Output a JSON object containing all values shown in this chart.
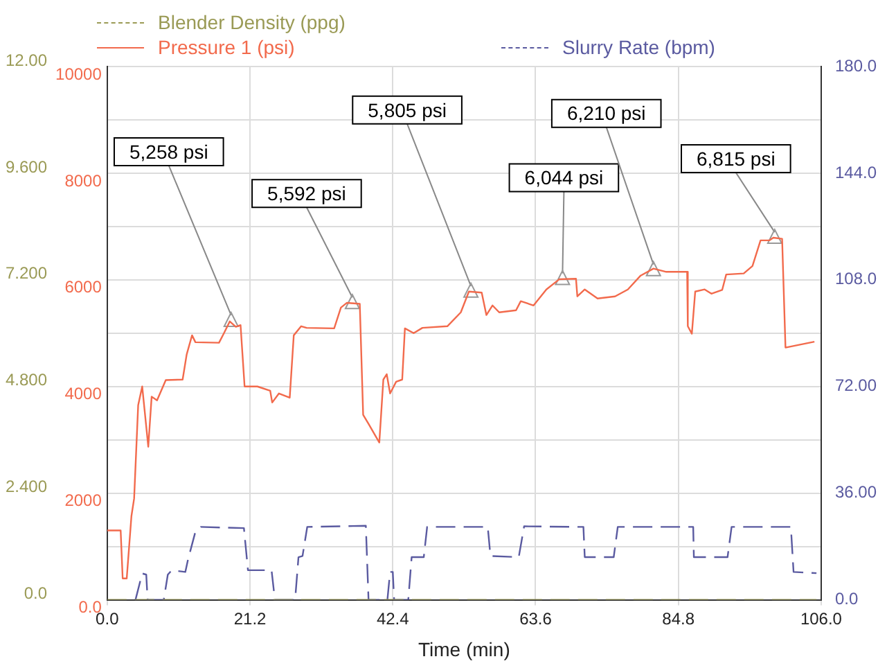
{
  "chart_data": {
    "type": "line",
    "xlabel": "Time (min)",
    "legend": "top",
    "grid": true,
    "marker": "none",
    "xlim": [
      0,
      106
    ],
    "xticks": [
      {
        "value": 0,
        "label": "0.0"
      },
      21.2,
      42.4,
      63.6,
      84.8,
      {
        "value": 106,
        "label": "106.0"
      }
    ],
    "ylim": [
      0,
      10000
    ],
    "yticks": [
      {
        "value": 0,
        "label": "0.0"
      },
      {
        "value": 1000,
        "label": null
      },
      2000,
      {
        "value": 3000,
        "label": null
      },
      4000,
      {
        "value": 5000,
        "label": null
      },
      6000,
      {
        "value": 7000,
        "label": null
      },
      8000,
      {
        "value": 9000,
        "label": null
      },
      10000
    ],
    "y2lim": [
      0,
      180
    ],
    "y2ticks": [
      {
        "value": 0,
        "label": "0.0"
      },
      {
        "value": 36,
        "label": "36.00"
      },
      {
        "value": 72,
        "label": "72.00"
      },
      {
        "value": 108,
        "label": "108.0"
      },
      {
        "value": 144,
        "label": "144.0"
      },
      {
        "value": 180,
        "label": "180.0"
      }
    ],
    "y3lim": [
      0,
      12
    ],
    "y3ticks": [
      {
        "value": 0,
        "label": "0.0"
      },
      {
        "value": 2.4,
        "label": "2.400"
      },
      {
        "value": 4.8,
        "label": "4.800"
      },
      {
        "value": 7.2,
        "label": "7.200"
      },
      {
        "value": 9.6,
        "label": "9.600"
      },
      {
        "value": 12,
        "label": "12.00"
      }
    ],
    "series": [
      {
        "name": "Blender Density (ppg)",
        "color": "#9a9a55",
        "axis": "y3",
        "line_style": "dashed",
        "x": [
          0,
          105.3
        ],
        "values": [
          0,
          0
        ]
      },
      {
        "name": "Pressure 1 (psi)",
        "color": "#f26a4c",
        "line_style": "solid",
        "x": [
          0,
          2.0,
          2.3,
          2.9,
          3.6,
          4.0,
          4.6,
          5.2,
          6.1,
          6.6,
          7.4,
          8.7,
          11.2,
          11.8,
          12.6,
          13.1,
          16.6,
          17.3,
          18.2,
          19.1,
          19.8,
          20.4,
          22.3,
          24.2,
          24.5,
          25.5,
          27.1,
          27.7,
          28.8,
          29.6,
          33.7,
          34.7,
          35.6,
          37.5,
          38.0,
          38.8,
          40.4,
          41.0,
          41.5,
          42.0,
          42.9,
          43.8,
          44.2,
          45.5,
          46.8,
          50.5,
          52.5,
          53.7,
          55.6,
          56.3,
          57.2,
          58.2,
          60.7,
          61.4,
          63.3,
          65.2,
          67.1,
          69.6,
          69.8,
          70.9,
          72.8,
          75.4,
          77.3,
          79.2,
          81.1,
          83.0,
          86.1,
          86.2,
          86.8,
          87.3,
          88.7,
          89.7,
          91.3,
          91.9,
          94.5,
          95.8,
          97.0,
          98.3,
          98.9,
          100.2,
          100.7,
          105.0
        ],
        "values": [
          1300,
          1300,
          400,
          400,
          1570,
          1900,
          3650,
          4000,
          2870,
          3810,
          3740,
          4120,
          4130,
          4600,
          4960,
          4830,
          4820,
          4990,
          5220,
          5120,
          5150,
          4000,
          4000,
          3920,
          3700,
          3870,
          3790,
          4960,
          5130,
          5100,
          5090,
          5480,
          5570,
          5550,
          3470,
          3300,
          2950,
          4130,
          4230,
          3870,
          4090,
          4130,
          5090,
          5000,
          5100,
          5130,
          5390,
          5780,
          5760,
          5340,
          5520,
          5390,
          5430,
          5600,
          5520,
          5820,
          6010,
          6020,
          5690,
          5820,
          5650,
          5690,
          5820,
          6080,
          6210,
          6150,
          6150,
          5130,
          4990,
          5780,
          5820,
          5740,
          5810,
          6100,
          6120,
          6260,
          6740,
          6740,
          6790,
          6770,
          4730,
          4840
        ]
      },
      {
        "name": "Slurry Rate (bpm)",
        "color": "#5a5aa0",
        "axis": "y2",
        "line_style": "dashed",
        "x": [
          4.2,
          5.2,
          5.8,
          6.0,
          8.4,
          9.0,
          9.6,
          11.6,
          12.0,
          13.1,
          13.9,
          20.3,
          20.9,
          24.4,
          24.9,
          27.9,
          28.4,
          29.0,
          29.7,
          38.4,
          38.8,
          41.6,
          42.0,
          42.4,
          42.6,
          44.7,
          45.2,
          47.0,
          47.5,
          56.5,
          56.9,
          61.1,
          61.9,
          70.7,
          70.9,
          75.2,
          75.8,
          87.0,
          87.1,
          92.1,
          92.7,
          101.5,
          101.9,
          105.3
        ],
        "values": [
          0,
          8.9,
          8.5,
          0,
          0,
          8.5,
          10,
          9.4,
          13.6,
          23,
          24.6,
          24.2,
          10,
          10,
          0,
          0,
          14.4,
          14.8,
          24.6,
          25,
          0,
          0,
          9.4,
          9.4,
          0,
          0,
          14.4,
          14.4,
          24.6,
          24.6,
          14.8,
          14.4,
          24.8,
          24.6,
          14.4,
          14.4,
          24.6,
          24.6,
          14.4,
          14.4,
          24.6,
          24.6,
          9.4,
          9.0
        ]
      }
    ],
    "annotations": [
      {
        "text": "5,258 psi",
        "x": 18.4,
        "y": 5258
      },
      {
        "text": "5,592 psi",
        "x": 36.4,
        "y": 5592
      },
      {
        "text": "5,805 psi",
        "x": 54.0,
        "y": 5805
      },
      {
        "text": "6,044 psi",
        "x": 67.6,
        "y": 6044
      },
      {
        "text": "6,210 psi",
        "x": 81.1,
        "y": 6210
      },
      {
        "text": "6,815 psi",
        "x": 99.1,
        "y": 6815
      }
    ]
  }
}
